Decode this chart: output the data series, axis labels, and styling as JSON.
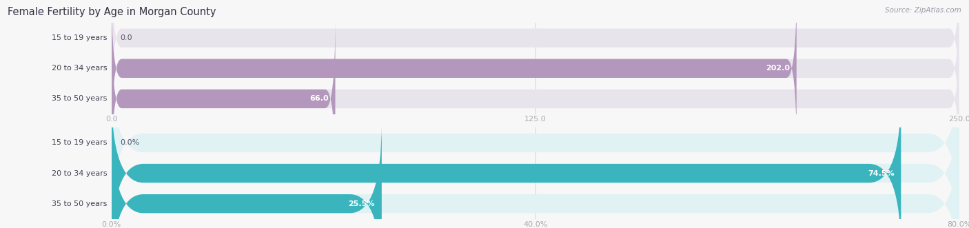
{
  "title": "Female Fertility by Age in Morgan County",
  "source": "Source: ZipAtlas.com",
  "top_chart": {
    "categories": [
      "15 to 19 years",
      "20 to 34 years",
      "35 to 50 years"
    ],
    "values": [
      0.0,
      202.0,
      66.0
    ],
    "bar_color": "#b497bd",
    "bg_color": "#e8e4ec",
    "xlim": [
      0,
      250
    ],
    "xticks": [
      0.0,
      125.0,
      250.0
    ]
  },
  "bottom_chart": {
    "categories": [
      "15 to 19 years",
      "20 to 34 years",
      "35 to 50 years"
    ],
    "values": [
      0.0,
      74.5,
      25.5
    ],
    "bar_color": "#3ab5be",
    "bg_color": "#e0f2f4",
    "xlim": [
      0,
      80
    ],
    "xticks": [
      0.0,
      40.0,
      80.0
    ]
  },
  "label_fontsize": 8.0,
  "title_fontsize": 10.5,
  "bar_height": 0.62,
  "bar_label_fontsize": 8.0,
  "value_label_color_inside": "#ffffff",
  "value_label_color_outside": "#555566",
  "tick_label_color": "#aaaaaa",
  "label_text_color": "#444455",
  "fig_bg": "#f7f7f7",
  "bar_bg_color": "#ebebeb"
}
